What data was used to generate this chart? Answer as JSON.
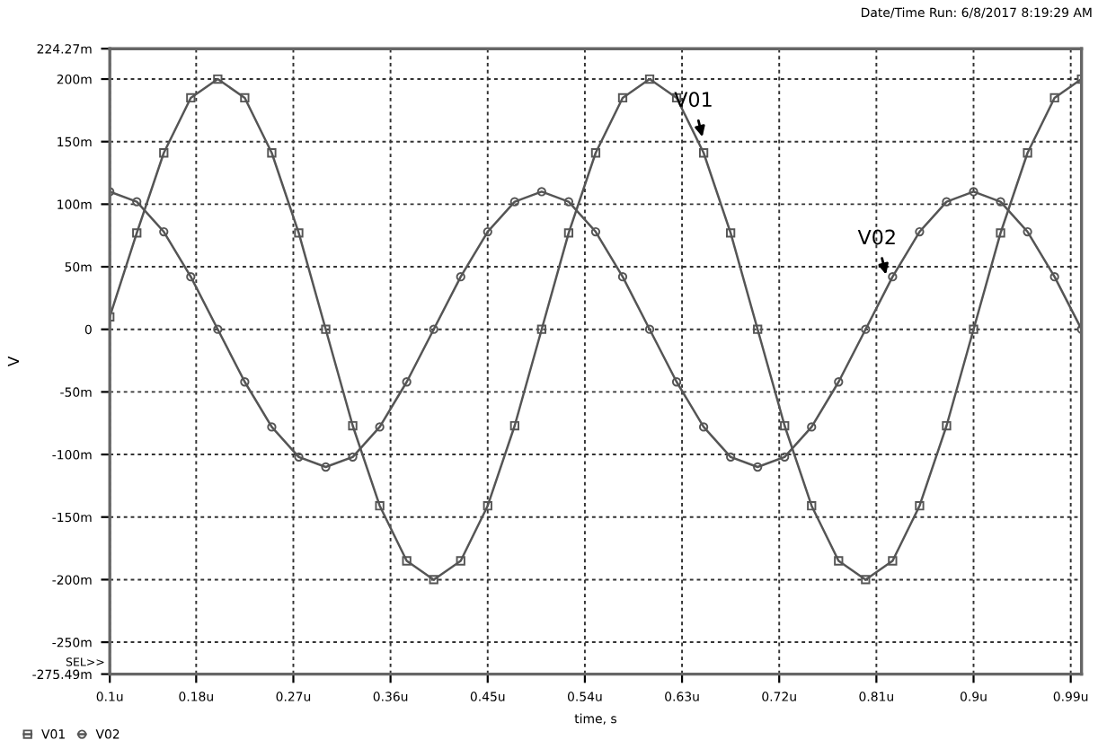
{
  "chart_data": {
    "type": "line",
    "xlabel": "time, s",
    "ylabel": "V",
    "x": [
      0.1,
      0.125,
      0.15,
      0.175,
      0.2,
      0.225,
      0.25,
      0.275,
      0.3,
      0.325,
      0.35,
      0.375,
      0.4,
      0.425,
      0.45,
      0.475,
      0.5,
      0.525,
      0.55,
      0.575,
      0.6,
      0.625,
      0.65,
      0.675,
      0.7,
      0.725,
      0.75,
      0.775,
      0.8,
      0.825,
      0.85,
      0.875,
      0.9,
      0.925,
      0.95,
      0.975,
      1.0
    ],
    "series": [
      {
        "name": "V01",
        "color": "#555555",
        "marker": "square",
        "values": [
          10,
          77,
          141,
          185,
          200,
          185,
          141,
          77,
          0,
          -77,
          -141,
          -185,
          -200,
          -185,
          -141,
          -77,
          0,
          77,
          141,
          185,
          200,
          185,
          141,
          77,
          0,
          -77,
          -141,
          -185,
          -200,
          -185,
          -141,
          -77,
          0,
          77,
          141,
          185,
          200
        ]
      },
      {
        "name": "V02",
        "color": "#555555",
        "marker": "circle",
        "values": [
          110,
          102,
          78,
          42,
          0,
          -42,
          -78,
          -102,
          -110,
          -102,
          -78,
          -42,
          0,
          42,
          78,
          102,
          110,
          102,
          78,
          42,
          0,
          -42,
          -78,
          -102,
          -110,
          -102,
          -78,
          -42,
          0,
          42,
          78,
          102,
          110,
          102,
          78,
          42,
          0
        ]
      }
    ],
    "xlim": [
      0.1,
      1.0
    ],
    "xticks": [
      {
        "value": 0.1,
        "label": "0.1u"
      },
      {
        "value": 0.18,
        "label": "0.18u"
      },
      {
        "value": 0.27,
        "label": "0.27u"
      },
      {
        "value": 0.36,
        "label": "0.36u"
      },
      {
        "value": 0.45,
        "label": "0.45u"
      },
      {
        "value": 0.54,
        "label": "0.54u"
      },
      {
        "value": 0.63,
        "label": "0.63u"
      },
      {
        "value": 0.72,
        "label": "0.72u"
      },
      {
        "value": 0.81,
        "label": "0.81u"
      },
      {
        "value": 0.9,
        "label": "0.9u"
      },
      {
        "value": 0.99,
        "label": "0.99u"
      }
    ],
    "ylim": [
      -275.49,
      224.27
    ],
    "yticks": [
      {
        "value": -275.49,
        "label": "-275.49m"
      },
      {
        "value": -250,
        "label": "-250m"
      },
      {
        "value": -200,
        "label": "-200m"
      },
      {
        "value": -150,
        "label": "-150m"
      },
      {
        "value": -100,
        "label": "-100m"
      },
      {
        "value": -50,
        "label": "-50m"
      },
      0,
      {
        "value": 50,
        "label": "50m"
      },
      {
        "value": 100,
        "label": "100m"
      },
      {
        "value": 150,
        "label": "150m"
      },
      {
        "value": 200,
        "label": "200m"
      },
      {
        "value": 224.27,
        "label": "224.27m"
      }
    ],
    "grid": true,
    "legend": "bottom left",
    "line_style": "solid",
    "annotations": [
      {
        "text": "V01",
        "x": 0.65,
        "y": 150
      },
      {
        "text": "V02",
        "x": 0.82,
        "y": 40
      },
      "Date/Time Run: 6/8/2017 8:19:29 AM",
      "SEL>>"
    ]
  }
}
